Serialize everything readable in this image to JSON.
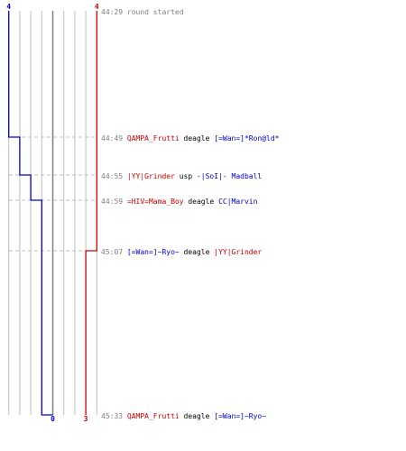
{
  "chart_data": {
    "type": "line",
    "title": "",
    "xlabel": "",
    "ylabel": "",
    "xlim": [
      0,
      8
    ],
    "grid": true,
    "series": [
      {
        "team": "blue",
        "color": "#0000cc",
        "start_label": "4",
        "end_label": "0",
        "points": [
          {
            "time": "44:29",
            "alive": 4
          },
          {
            "time": "44:49",
            "alive": 3
          },
          {
            "time": "44:55",
            "alive": 2
          },
          {
            "time": "44:59",
            "alive": 1
          },
          {
            "time": "45:33",
            "alive": 0
          }
        ]
      },
      {
        "team": "red",
        "color": "#cc0000",
        "start_label": "4",
        "end_label": "3",
        "points": [
          {
            "time": "44:29",
            "alive": 4
          },
          {
            "time": "45:07",
            "alive": 3
          }
        ]
      }
    ]
  },
  "events": [
    {
      "time": "44:29",
      "text": "round started",
      "killer": "",
      "killer_team": "",
      "weapon": "",
      "victim": "",
      "victim_team": ""
    },
    {
      "time": "44:49",
      "text": "",
      "killer": "QAMPA_Frutti",
      "killer_team": "red",
      "weapon": "deagle",
      "victim": "[=Wan=]*Ron@ld*",
      "victim_team": "blue"
    },
    {
      "time": "44:55",
      "text": "",
      "killer": "|YY|Grinder",
      "killer_team": "red",
      "weapon": "usp",
      "victim": "-|SoI|- Madball",
      "victim_team": "blue"
    },
    {
      "time": "44:59",
      "text": "",
      "killer": "=HIV=Mama_Boy",
      "killer_team": "red",
      "weapon": "deagle",
      "victim": "CC|Marvin",
      "victim_team": "blue"
    },
    {
      "time": "45:07",
      "text": "",
      "killer": "[=Wan=]~Ryo~",
      "killer_team": "blue",
      "weapon": "deagle",
      "victim": "|YY|Grinder",
      "victim_team": "red"
    },
    {
      "time": "45:33",
      "text": "",
      "killer": "QAMPA_Frutti",
      "killer_team": "red",
      "weapon": "deagle",
      "victim": "[=Wan=]~Ryo~",
      "victim_team": "blue"
    }
  ],
  "colors": {
    "blue_team": "#0000cc",
    "red_team": "#cc0000",
    "timestamp": "#808080",
    "grid": "#c0c0c0",
    "center_line": "#808080",
    "dashed": "#c0c0c0"
  }
}
